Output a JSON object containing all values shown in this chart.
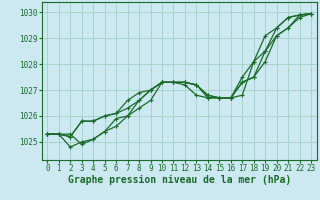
{
  "title": "Graphe pression niveau de la mer (hPa)",
  "background_color": "#cce8f0",
  "grid_color": "#99ccbb",
  "line_color": "#1a6b2a",
  "xlim": [
    -0.5,
    23.5
  ],
  "ylim": [
    1024.3,
    1030.4
  ],
  "xticks": [
    0,
    1,
    2,
    3,
    4,
    5,
    6,
    7,
    8,
    9,
    10,
    11,
    12,
    13,
    14,
    15,
    16,
    17,
    18,
    19,
    20,
    21,
    22,
    23
  ],
  "yticks": [
    1025,
    1026,
    1027,
    1028,
    1029,
    1030
  ],
  "series": [
    [
      1025.3,
      1025.3,
      1025.3,
      1024.9,
      1025.1,
      1025.4,
      1025.9,
      1026.0,
      1026.3,
      1026.6,
      1027.3,
      1027.3,
      1027.3,
      1027.2,
      1026.8,
      1026.7,
      1026.7,
      1026.8,
      1028.1,
      1029.1,
      1029.4,
      1029.8,
      1029.9,
      1029.95
    ],
    [
      1025.3,
      1025.3,
      1025.2,
      1025.8,
      1025.8,
      1026.0,
      1026.1,
      1026.3,
      1026.6,
      1027.0,
      1027.3,
      1027.3,
      1027.3,
      1027.2,
      1026.8,
      1026.7,
      1026.7,
      1027.5,
      1028.1,
      1028.5,
      1029.4,
      1029.8,
      1029.9,
      1029.95
    ],
    [
      1025.3,
      1025.3,
      1025.2,
      1025.8,
      1025.8,
      1026.0,
      1026.1,
      1026.6,
      1026.9,
      1027.0,
      1027.3,
      1027.3,
      1027.2,
      1026.8,
      1026.7,
      1026.7,
      1026.7,
      1027.3,
      1027.5,
      1028.1,
      1029.1,
      1029.4,
      1029.9,
      1029.95
    ],
    [
      1025.3,
      1025.3,
      1024.8,
      1025.0,
      1025.1,
      1025.4,
      1025.6,
      1026.0,
      1026.6,
      1027.0,
      1027.3,
      1027.3,
      1027.3,
      1027.2,
      1026.7,
      1026.7,
      1026.7,
      1027.3,
      1027.5,
      1028.5,
      1029.1,
      1029.4,
      1029.8,
      1029.95
    ]
  ],
  "marker": "+",
  "marker_size": 3,
  "linewidth": 0.9,
  "tick_fontsize": 5.5,
  "title_fontsize": 7,
  "figwidth": 3.2,
  "figheight": 2.0,
  "dpi": 100
}
